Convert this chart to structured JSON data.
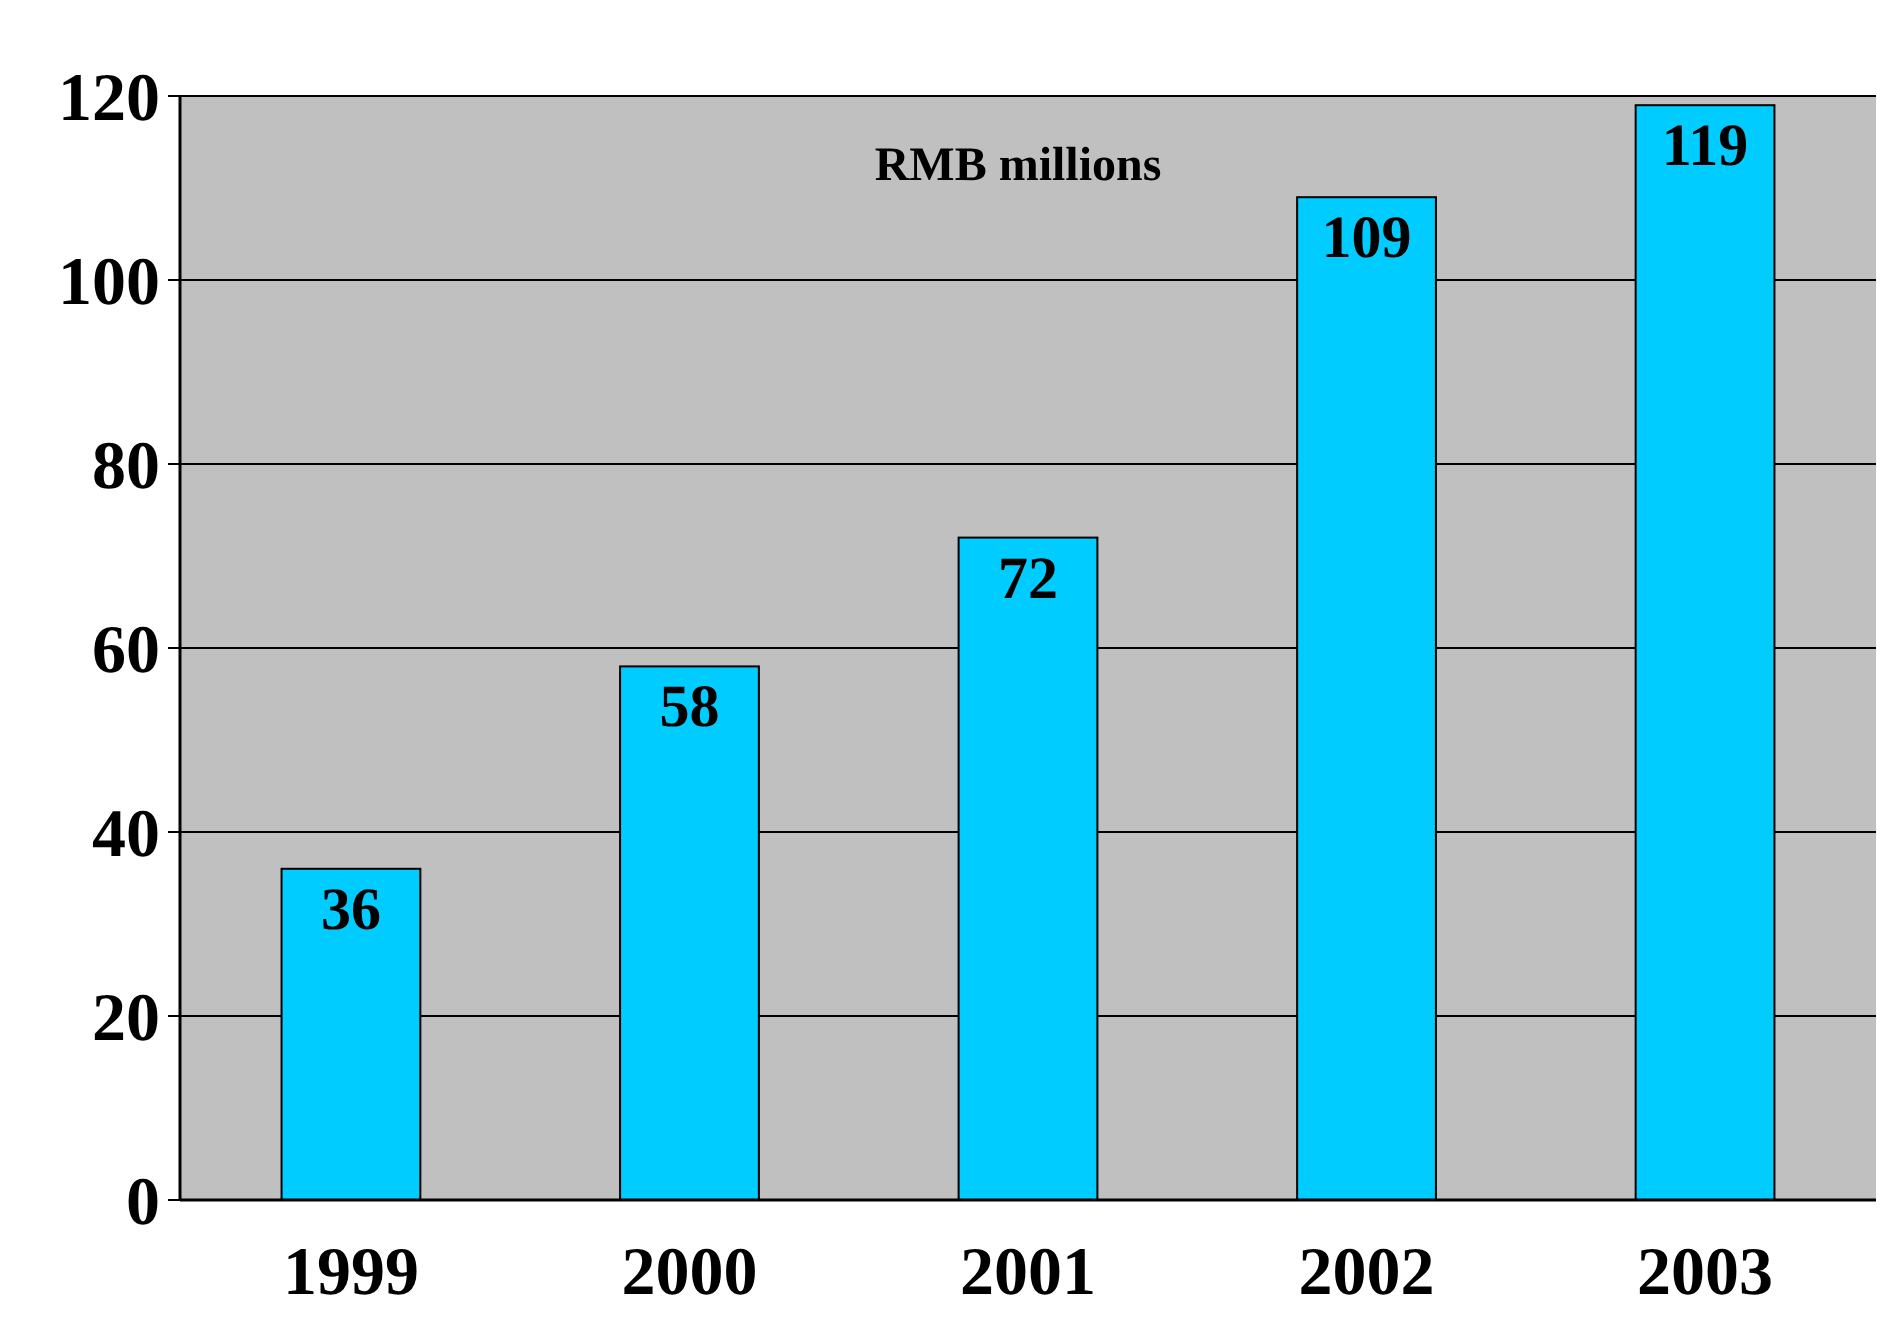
{
  "chart_data": {
    "type": "bar",
    "categories": [
      "1999",
      "2000",
      "2001",
      "2002",
      "2003"
    ],
    "values": [
      36,
      58,
      72,
      109,
      119
    ],
    "color": "#00ccff",
    "ylim": [
      0,
      120
    ],
    "yticks": [
      0,
      20,
      40,
      60,
      80,
      100,
      120
    ],
    "grid": "y",
    "data_labels": true,
    "annotations": [
      "RMB millions"
    ]
  }
}
